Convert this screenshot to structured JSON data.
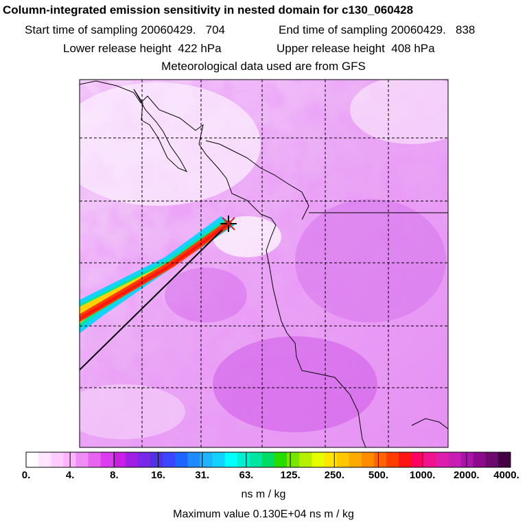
{
  "title": "Column-integrated emission sensitivity in nested domain for c130_060428",
  "sampling": {
    "start_label": "Start time of sampling 20060429.   704",
    "end_label": "End time of sampling 20060429.   838"
  },
  "release": {
    "lower_label": "Lower release height  422 hPa",
    "upper_label": "Upper release height  408 hPa"
  },
  "met_label": "Meteorological data used are from GFS",
  "colorbar": {
    "tick_labels": [
      "0.",
      "4.",
      "8.",
      "16.",
      "31.",
      "63.",
      "125.",
      "250.",
      "500.",
      "1000.",
      "2000.",
      "4000."
    ],
    "colors": [
      "#ffffff",
      "#ffe6ff",
      "#ffccff",
      "#ffb3ff",
      "#f08cf5",
      "#e664f0",
      "#dc3cf0",
      "#c81ee6",
      "#a01ee6",
      "#7828e6",
      "#5032e6",
      "#3c46ff",
      "#1e64ff",
      "#1e8cff",
      "#1eb4ff",
      "#14d2ff",
      "#00ffff",
      "#00f0d2",
      "#00e6a0",
      "#00dc64",
      "#28dc00",
      "#78e600",
      "#b4f000",
      "#e6ff00",
      "#ffe600",
      "#ffc800",
      "#ffaa00",
      "#ff8c00",
      "#ff6400",
      "#ff3c00",
      "#ff1414",
      "#ff0064",
      "#f0148c",
      "#dc1eaa",
      "#c81eb4",
      "#aa14aa",
      "#8c0a8c",
      "#6e0a6e",
      "#460046"
    ],
    "units": "ns m / kg"
  },
  "max_value_label": "Maximum value  0.130E+04 ns m / kg"
}
